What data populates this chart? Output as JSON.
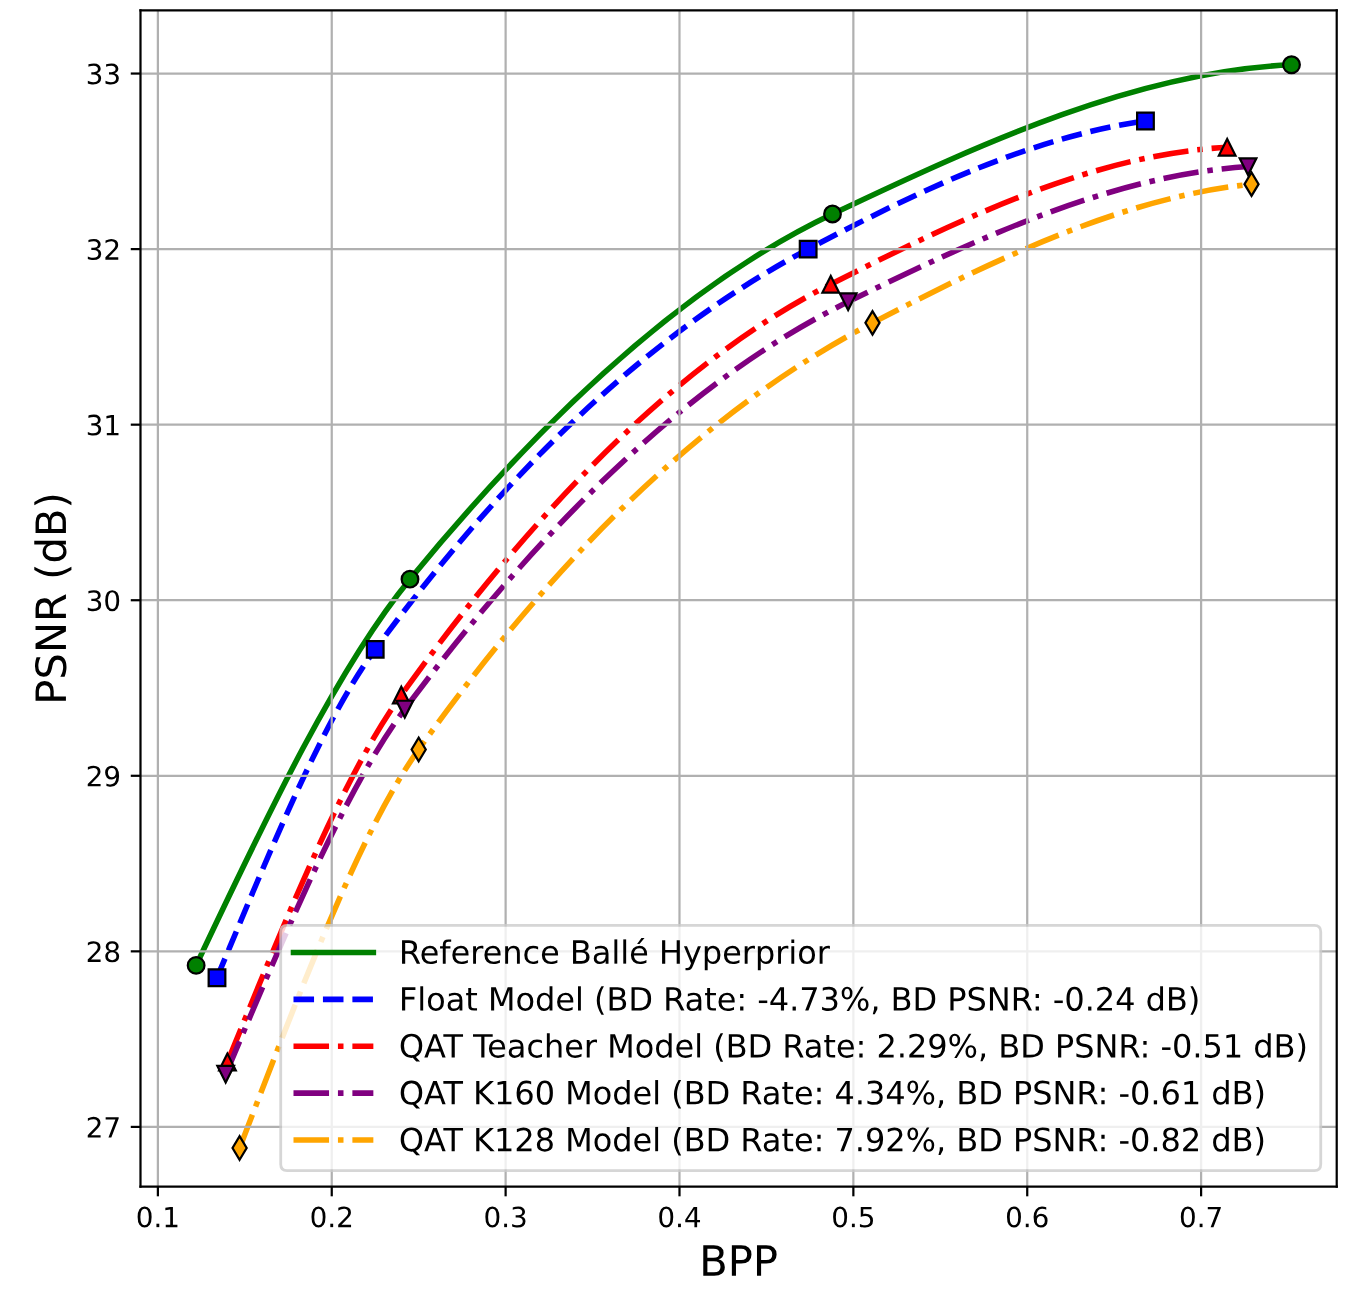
{
  "chart_data": {
    "type": "line",
    "xlabel": "BPP",
    "ylabel": "PSNR (dB)",
    "xlim": [
      0.09,
      0.778
    ],
    "ylim": [
      26.66,
      33.36
    ],
    "xticks": [
      0.1,
      0.2,
      0.3,
      0.4,
      0.5,
      0.6,
      0.7
    ],
    "yticks": [
      27,
      28,
      29,
      30,
      31,
      32,
      33
    ],
    "grid": true,
    "legend": "bottom right",
    "series": [
      {
        "name": "Reference Ballé Hyperprior",
        "color": "#008000",
        "marker": "circle",
        "line_style": "solid",
        "x": [
          0.122,
          0.245,
          0.488,
          0.752
        ],
        "values": [
          27.92,
          30.12,
          32.2,
          33.05
        ]
      },
      {
        "name": "Float Model (BD Rate: -4.73%, BD PSNR: -0.24 dB)",
        "color": "#0000ff",
        "marker": "square",
        "line_style": "dashed",
        "x": [
          0.134,
          0.225,
          0.474,
          0.668
        ],
        "values": [
          27.85,
          29.72,
          32.0,
          32.73
        ]
      },
      {
        "name": "QAT Teacher Model (BD Rate: 2.29%, BD PSNR: -0.51 dB)",
        "color": "#ff0000",
        "marker": "triangle",
        "line_style": "dashdot",
        "x": [
          0.14,
          0.24,
          0.487,
          0.715
        ],
        "values": [
          27.37,
          29.46,
          31.8,
          32.58
        ]
      },
      {
        "name": "QAT K160 Model (BD Rate: 4.34%, BD PSNR: -0.61 dB)",
        "color": "#800080",
        "marker": "triangle_down",
        "line_style": "dashdot",
        "x": [
          0.139,
          0.242,
          0.497,
          0.727
        ],
        "values": [
          27.3,
          29.38,
          31.7,
          32.47
        ]
      },
      {
        "name": "QAT K128 Model (BD Rate: 7.92%, BD PSNR: -0.82 dB)",
        "color": "#ffa500",
        "marker": "diamond",
        "line_style": "dashdot",
        "x": [
          0.147,
          0.25,
          0.511,
          0.729
        ],
        "values": [
          26.88,
          29.15,
          31.58,
          32.37
        ]
      }
    ]
  }
}
